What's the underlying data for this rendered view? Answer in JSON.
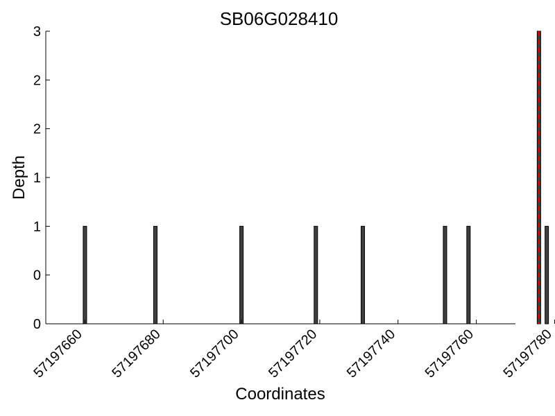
{
  "chart_data": {
    "type": "bar",
    "title": "SB06G028410",
    "xlabel": "Coordinates",
    "ylabel": "Depth",
    "xlim": [
      57197650,
      57197770
    ],
    "ylim": [
      0,
      3
    ],
    "x_ticks": [
      57197660,
      57197680,
      57197700,
      57197720,
      57197740,
      57197760,
      57197780
    ],
    "x_tick_labels": [
      "57197660",
      "57197680",
      "57197700",
      "57197720",
      "57197740",
      "57197760",
      "57197780"
    ],
    "y_ticks": [
      0,
      0.5,
      1,
      1.5,
      2,
      2.5,
      3
    ],
    "y_tick_labels": [
      "0",
      "0",
      "1",
      "1",
      "2",
      "2",
      "3"
    ],
    "bar_color": "#404040",
    "bar_edge_color": "#000000",
    "x": [
      57197660,
      57197678,
      57197700,
      57197719,
      57197731,
      57197752,
      57197758,
      57197776,
      57197778
    ],
    "values": [
      1,
      1,
      1,
      1,
      1,
      1,
      1,
      3,
      1
    ],
    "marker_line": {
      "x": 57197776,
      "color": "#cc0000",
      "style": "dashed"
    }
  }
}
